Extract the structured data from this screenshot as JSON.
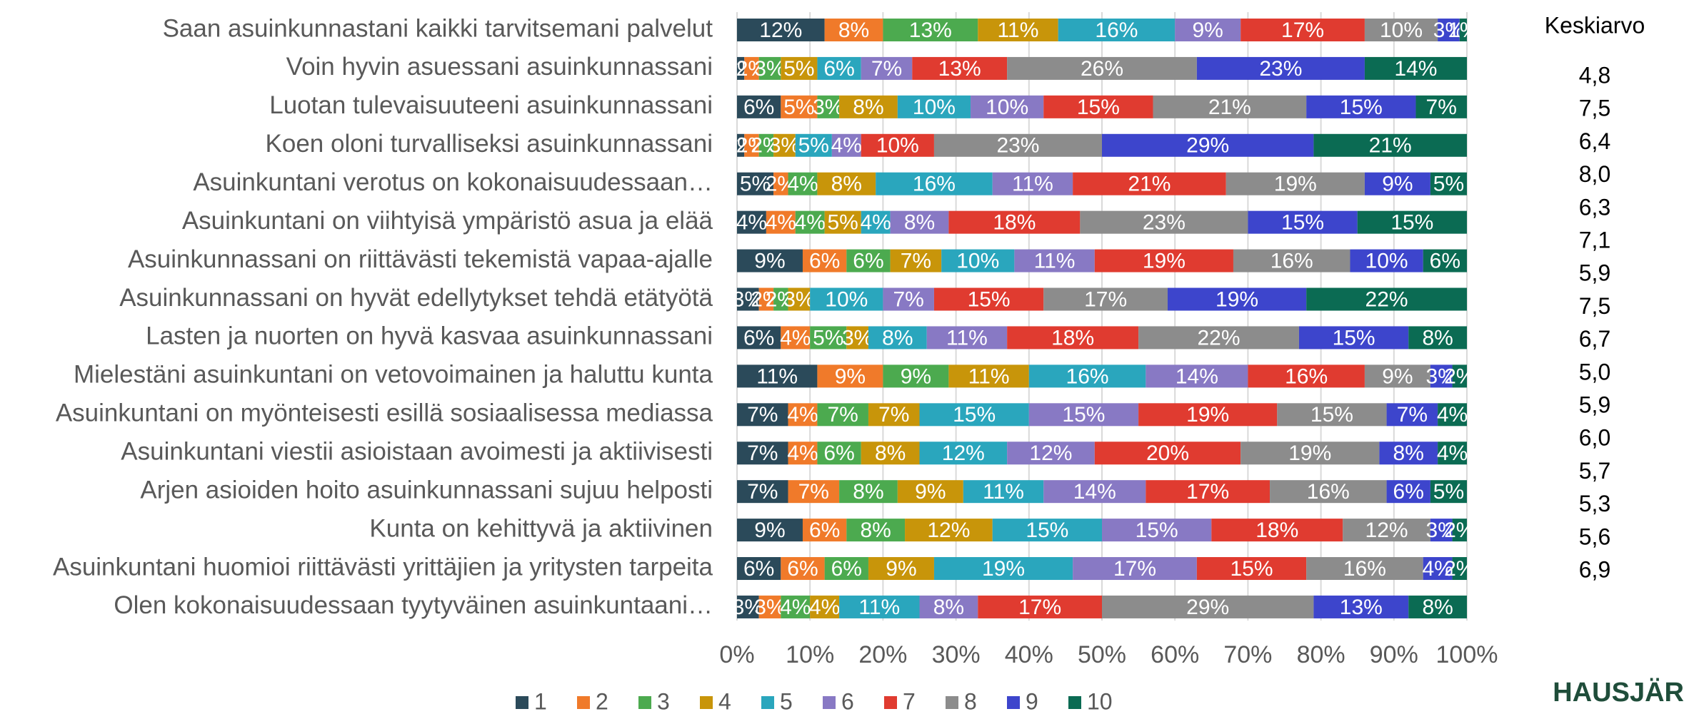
{
  "chart_data": {
    "type": "bar",
    "orientation": "horizontal",
    "stacked": true,
    "categories": [
      "Saan asuinkunnastani kaikki tarvitsemani palvelut",
      "Voin hyvin asuessani asuinkunnassani",
      "Luotan tulevaisuuteeni asuinkunnassani",
      "Koen oloni turvalliseksi asuinkunnassani",
      "Asuinkuntani verotus on kokonaisuudessaan…",
      "Asuinkuntani on viihtyisä ympäristö asua ja elää",
      "Asuinkunnassani on riittävästi tekemistä vapaa-ajalle",
      "Asuinkunnassani on hyvät edellytykset tehdä etätyötä",
      "Lasten ja nuorten on hyvä kasvaa asuinkunnassani",
      "Mielestäni asuinkuntani on vetovoimainen ja haluttu kunta",
      "Asuinkuntani on myönteisesti esillä sosiaalisessa mediassa",
      "Asuinkuntani viestii asioistaan avoimesti ja aktiivisesti",
      "Arjen asioiden hoito asuinkunnassani sujuu helposti",
      "Kunta on kehittyvä ja aktiivinen",
      "Asuinkuntani huomioi riittävästi yrittäjien ja yritysten tarpeita",
      "Olen kokonaisuudessaan tyytyväinen asuinkuntaani…"
    ],
    "series": [
      {
        "name": "1",
        "color": "#2b4a5a",
        "values": [
          12,
          1,
          6,
          1,
          5,
          4,
          9,
          3,
          6,
          11,
          7,
          7,
          7,
          9,
          6,
          3
        ],
        "value_labels": [
          "12%",
          "1%",
          "6%",
          "1%",
          "5%",
          "4%",
          "9%",
          "3%",
          "6%",
          "11%",
          "7%",
          "7%",
          "7%",
          "9%",
          "6%",
          "3%"
        ]
      },
      {
        "name": "2",
        "color": "#f07a2a",
        "values": [
          8,
          2,
          5,
          2,
          2,
          4,
          6,
          2,
          4,
          9,
          4,
          4,
          7,
          6,
          6,
          3
        ],
        "value_labels": [
          "8%",
          "2%",
          "5%",
          "2%",
          "2%",
          "4%",
          "6%",
          "2%",
          "4%",
          "9%",
          "4%",
          "4%",
          "7%",
          "6%",
          "6%",
          "3%"
        ]
      },
      {
        "name": "3",
        "color": "#4caa4f",
        "values": [
          13,
          3,
          3,
          2,
          4,
          4,
          6,
          2,
          5,
          9,
          7,
          6,
          8,
          8,
          6,
          4
        ],
        "value_labels": [
          "13%",
          "3%",
          "3%",
          "2%",
          "4%",
          "4%",
          "6%",
          "2%",
          "5%",
          "9%",
          "7%",
          "6%",
          "8%",
          "8%",
          "6%",
          "4%"
        ]
      },
      {
        "name": "4",
        "color": "#c8950a",
        "values": [
          11,
          5,
          8,
          3,
          8,
          5,
          7,
          3,
          3,
          11,
          7,
          8,
          9,
          12,
          9,
          4
        ],
        "value_labels": [
          "11%",
          "5%",
          "8%",
          "3%",
          "8%",
          "5%",
          "7%",
          "3%",
          "3%",
          "11%",
          "7%",
          "8%",
          "9%",
          "12%",
          "9%",
          "4%"
        ]
      },
      {
        "name": "5",
        "color": "#2aa6bd",
        "values": [
          16,
          6,
          10,
          5,
          16,
          4,
          10,
          10,
          8,
          16,
          15,
          12,
          11,
          15,
          19,
          11
        ],
        "value_labels": [
          "16%",
          "6%",
          "10%",
          "5%",
          "16%",
          "4%",
          "10%",
          "10%",
          "8%",
          "16%",
          "15%",
          "12%",
          "11%",
          "15%",
          "19%",
          "11%"
        ]
      },
      {
        "name": "6",
        "color": "#8879c4",
        "values": [
          9,
          7,
          10,
          4,
          11,
          8,
          11,
          7,
          11,
          14,
          15,
          12,
          14,
          15,
          17,
          8
        ],
        "value_labels": [
          "9%",
          "7%",
          "10%",
          "4%",
          "11%",
          "8%",
          "11%",
          "7%",
          "11%",
          "14%",
          "15%",
          "12%",
          "14%",
          "15%",
          "17%",
          "8%"
        ]
      },
      {
        "name": "7",
        "color": "#e03b30",
        "values": [
          17,
          13,
          15,
          10,
          21,
          18,
          19,
          15,
          18,
          16,
          19,
          20,
          17,
          18,
          15,
          17
        ],
        "value_labels": [
          "17%",
          "13%",
          "15%",
          "10%",
          "21%",
          "18%",
          "19%",
          "15%",
          "18%",
          "16%",
          "19%",
          "20%",
          "17%",
          "18%",
          "15%",
          "17%"
        ]
      },
      {
        "name": "8",
        "color": "#8c8c8c",
        "values": [
          10,
          26,
          21,
          23,
          19,
          23,
          16,
          17,
          22,
          9,
          15,
          19,
          16,
          12,
          16,
          29
        ],
        "value_labels": [
          "10%",
          "26%",
          "21%",
          "23%",
          "19%",
          "23%",
          "16%",
          "17%",
          "22%",
          "9%",
          "15%",
          "19%",
          "16%",
          "12%",
          "16%",
          "29%"
        ]
      },
      {
        "name": "9",
        "color": "#3d45cc",
        "values": [
          3,
          23,
          15,
          29,
          9,
          15,
          10,
          19,
          15,
          3,
          7,
          8,
          6,
          3,
          4,
          13
        ],
        "value_labels": [
          "3%",
          "23%",
          "15%",
          "29%",
          "9%",
          "15%",
          "10%",
          "19%",
          "15%",
          "3%",
          "7%",
          "8%",
          "6%",
          "3%",
          "4%",
          "13%"
        ]
      },
      {
        "name": "10",
        "color": "#0b6b53",
        "values": [
          1,
          14,
          7,
          21,
          5,
          15,
          6,
          22,
          8,
          2,
          4,
          4,
          5,
          2,
          2,
          8
        ],
        "value_labels": [
          "1%",
          "14%",
          "7%",
          "21%",
          "5%",
          "15%",
          "6%",
          "22%",
          "8%",
          "2%",
          "4%",
          "4%",
          "5%",
          "2%",
          "2%",
          "8%"
        ]
      }
    ],
    "xlim": [
      0,
      100
    ],
    "xticks": [
      {
        "value": 0,
        "label": "0%"
      },
      {
        "value": 10,
        "label": "10%"
      },
      {
        "value": 20,
        "label": "20%"
      },
      {
        "value": 30,
        "label": "30%"
      },
      {
        "value": 40,
        "label": "40%"
      },
      {
        "value": 50,
        "label": "50%"
      },
      {
        "value": 60,
        "label": "60%"
      },
      {
        "value": 70,
        "label": "70%"
      },
      {
        "value": 80,
        "label": "80%"
      },
      {
        "value": 90,
        "label": "90%"
      },
      {
        "value": 100,
        "label": "100%"
      }
    ],
    "grid": true,
    "legend": "bottom",
    "average_title": "Keskiarvo",
    "averages": [
      "4,8",
      "7,5",
      "6,4",
      "8,0",
      "6,3",
      "7,1",
      "5,9",
      "7,5",
      "6,7",
      "5,0",
      "5,9",
      "6,0",
      "5,7",
      "5,3",
      "5,6",
      "6,9"
    ]
  },
  "logo": "HAUSJÄR"
}
